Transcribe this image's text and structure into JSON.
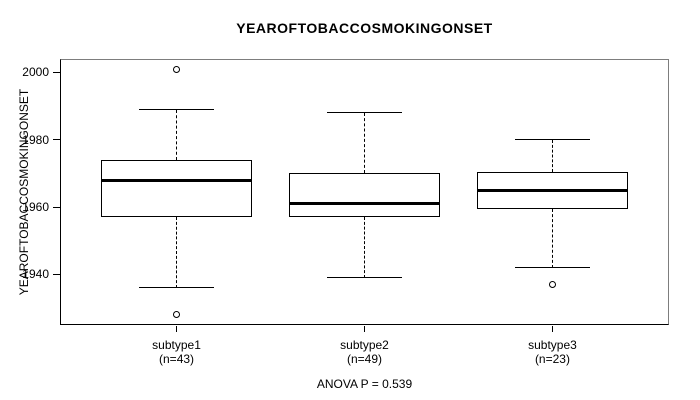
{
  "page": {
    "background": "#ffffff"
  },
  "chart_data": {
    "type": "boxplot",
    "title": "YEAROFTOBACCOSMOKINGONSET",
    "ylabel": "YEAROFTOBACCOSMOKINGONSET",
    "xlabel": "",
    "annotation": "ANOVA P = 0.539",
    "ylim": [
      1925,
      2004
    ],
    "yticks": [
      1940,
      1960,
      1980,
      2000
    ],
    "grid": false,
    "legend": "none",
    "colors": {
      "line": "#000000",
      "box_fill": "#ffffff",
      "text": "#000000"
    },
    "groups": [
      {
        "label": "subtype1",
        "count_label": "(n=43)",
        "n": 43,
        "whisker_low": 1936,
        "q1": 1957,
        "median": 1968,
        "q3": 1974,
        "whisker_high": 1989,
        "outliers": [
          2001,
          1928
        ]
      },
      {
        "label": "subtype2",
        "count_label": "(n=49)",
        "n": 49,
        "whisker_low": 1939,
        "q1": 1957,
        "median": 1961,
        "q3": 1970,
        "whisker_high": 1988,
        "outliers": []
      },
      {
        "label": "subtype3",
        "count_label": "(n=23)",
        "n": 23,
        "whisker_low": 1942,
        "q1": 1959.5,
        "median": 1965,
        "q3": 1970.5,
        "whisker_high": 1980,
        "outliers": [
          1937
        ]
      }
    ]
  }
}
